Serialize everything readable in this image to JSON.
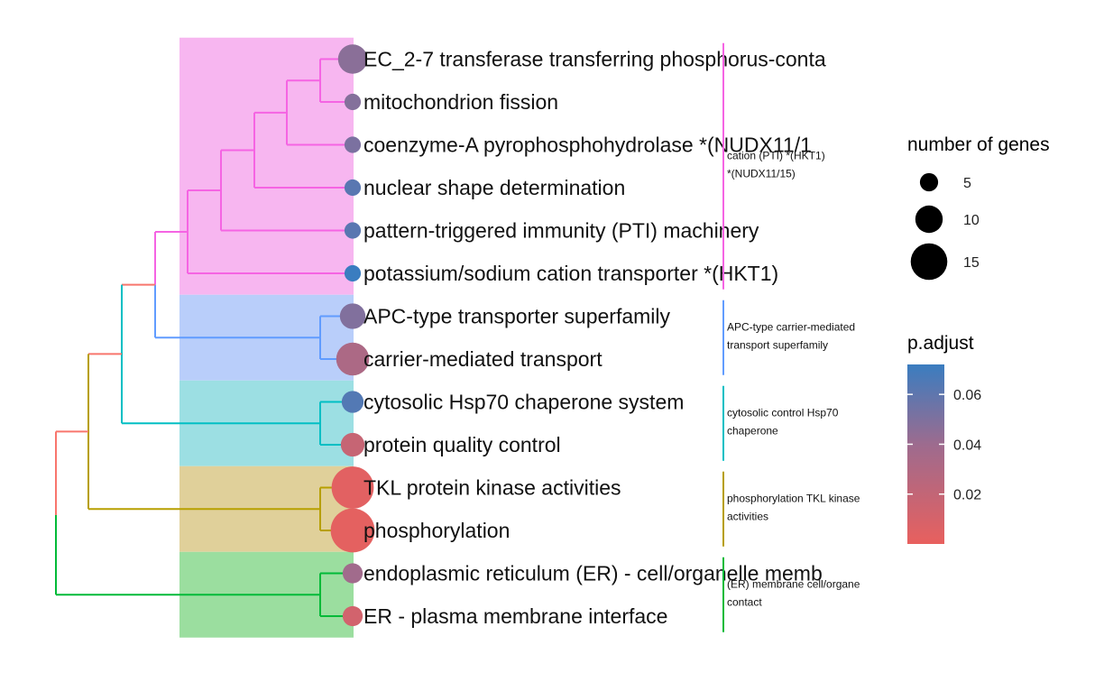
{
  "chart_data": {
    "type": "treeplot",
    "terms": [
      {
        "label": "EC_2-7 transferase transferring phosphorus-conta",
        "count": 11,
        "p_adjust": 0.046,
        "cluster": 0
      },
      {
        "label": "mitochondrion fission",
        "count": 4,
        "p_adjust": 0.048,
        "cluster": 0
      },
      {
        "label": "coenzyme-A pyrophosphohydrolase  *(NUDX11/1",
        "count": 4,
        "p_adjust": 0.051,
        "cluster": 0
      },
      {
        "label": "nuclear shape determination",
        "count": 4,
        "p_adjust": 0.062,
        "cluster": 0
      },
      {
        "label": "pattern-triggered immunity (PTI) machinery",
        "count": 4,
        "p_adjust": 0.062,
        "cluster": 0
      },
      {
        "label": "potassium/sodium cation transporter *(HKT1)",
        "count": 4,
        "p_adjust": 0.072,
        "cluster": 0
      },
      {
        "label": "APC-type transporter superfamily",
        "count": 9,
        "p_adjust": 0.049,
        "cluster": 1
      },
      {
        "label": "carrier-mediated transport",
        "count": 13,
        "p_adjust": 0.032,
        "cluster": 1
      },
      {
        "label": "cytosolic  Hsp70 chaperone system",
        "count": 7,
        "p_adjust": 0.064,
        "cluster": 2
      },
      {
        "label": "protein quality control",
        "count": 8,
        "p_adjust": 0.018,
        "cluster": 2
      },
      {
        "label": "TKL protein kinase activities",
        "count": 18,
        "p_adjust": 0.003,
        "cluster": 3
      },
      {
        "label": "phosphorylation",
        "count": 19,
        "p_adjust": 0.002,
        "cluster": 3
      },
      {
        "label": "endoplasmic reticulum (ER) - cell/organelle memb",
        "count": 6,
        "p_adjust": 0.038,
        "cluster": 4
      },
      {
        "label": "ER - plasma membrane interface",
        "count": 6,
        "p_adjust": 0.012,
        "cluster": 4
      }
    ],
    "clusters": [
      {
        "label_lines": [
          "cation (PTI) *(HKT1)",
          "*(NUDX11/15)"
        ],
        "color": "#F564E3",
        "fill": "#F7B6F0"
      },
      {
        "label_lines": [
          "APC-type carrier-mediated",
          "transport superfamily"
        ],
        "color": "#619CFF",
        "fill": "#B9CEFA"
      },
      {
        "label_lines": [
          "cytosolic control Hsp70",
          "chaperone"
        ],
        "color": "#00BFC4",
        "fill": "#9CDFE3"
      },
      {
        "label_lines": [
          "phosphorylation TKL kinase",
          "activities"
        ],
        "color": "#B79F00",
        "fill": "#E0D09A"
      },
      {
        "label_lines": [
          "(ER) membrane cell/organe",
          "contact"
        ],
        "color": "#00BA38",
        "fill": "#9BDE9F"
      }
    ],
    "root_colors": {
      "upper": "#F8766D",
      "lower": "#00BA38"
    },
    "legend_size": {
      "title": "number of genes",
      "entries": [
        5,
        10,
        15
      ]
    },
    "legend_color": {
      "title": "p.adjust",
      "ticks": [
        "0.06",
        "0.04",
        "0.02"
      ],
      "tick_values": [
        0.06,
        0.04,
        0.02
      ],
      "range": [
        0.0,
        0.072
      ],
      "color_low": "#E8605E",
      "color_high": "#3A7DC0"
    }
  }
}
